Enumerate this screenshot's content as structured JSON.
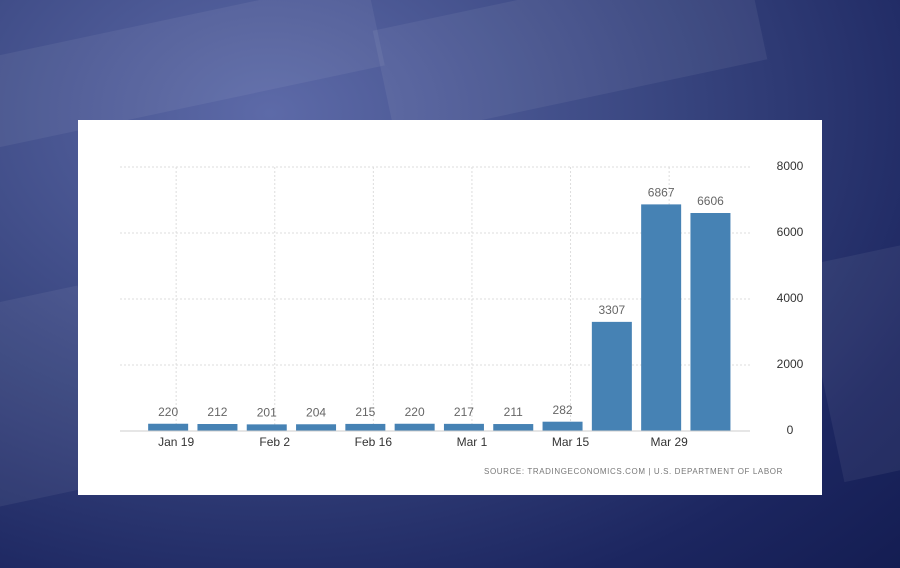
{
  "chart_data": {
    "type": "bar",
    "categories": [
      "Jan 19",
      null,
      "Feb 2",
      null,
      "Feb 16",
      null,
      "Mar 1",
      null,
      "Mar 15",
      null,
      "Mar 29",
      null
    ],
    "values": [
      220,
      212,
      201,
      204,
      215,
      220,
      217,
      211,
      282,
      3307,
      6867,
      6606
    ],
    "color": "#4682b4",
    "ylim": [
      0,
      8000
    ],
    "yticks": [
      0,
      2000,
      4000,
      6000,
      8000
    ],
    "y_axis_side": "right",
    "grid": true,
    "source": "SOURCE: TRADINGECONOMICS.COM | U.S. DEPARTMENT OF LABOR"
  }
}
